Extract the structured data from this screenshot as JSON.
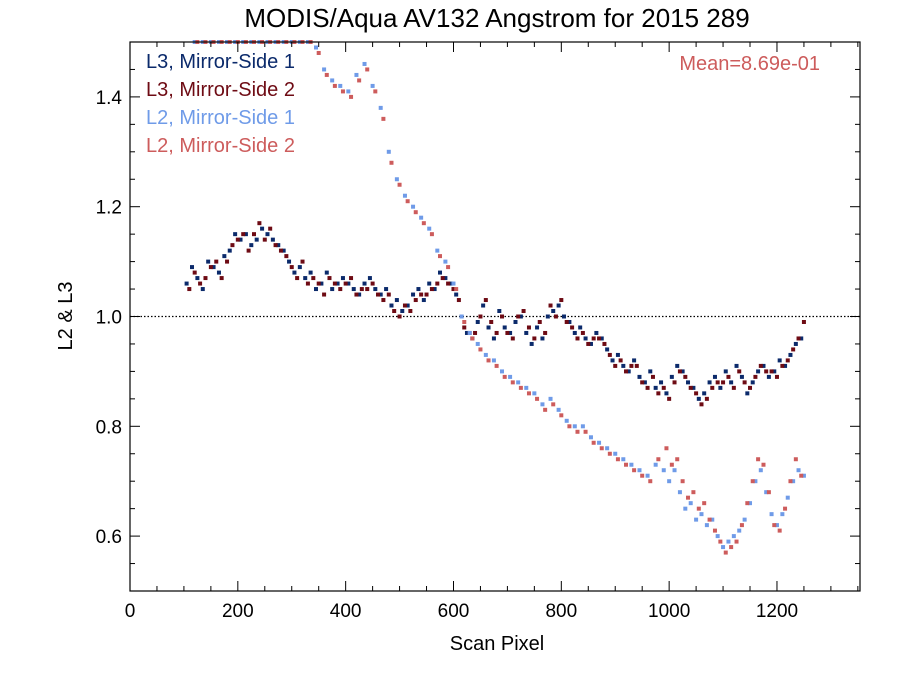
{
  "chart_data": {
    "type": "scatter",
    "title": "MODIS/Aqua AV132 Angstrom for 2015 289",
    "xlabel": "Scan Pixel",
    "ylabel": "L2 & L3",
    "xlim": [
      0,
      1354
    ],
    "ylim": [
      0.5,
      1.5
    ],
    "x_ticks": [
      0,
      200,
      400,
      600,
      800,
      1000,
      1200
    ],
    "y_ticks": [
      0.6,
      0.8,
      1.0,
      1.2,
      1.4
    ],
    "y_tick_labels": [
      "0.6",
      "0.8",
      "1.0",
      "1.2",
      "1.4"
    ],
    "reference_line": 1.0,
    "annotation": "Mean=8.69e-01",
    "annotation_color": "#cd5c5c",
    "legend_placement": "top-left",
    "series": [
      {
        "name": "L3, Mirror-Side 1",
        "color": "#0b2a6b",
        "x": [
          105,
          115,
          125,
          135,
          145,
          155,
          165,
          175,
          185,
          195,
          205,
          215,
          225,
          235,
          245,
          255,
          265,
          275,
          285,
          295,
          305,
          315,
          325,
          335,
          345,
          355,
          365,
          375,
          385,
          395,
          405,
          415,
          425,
          435,
          445,
          455,
          465,
          475,
          485,
          495,
          505,
          515,
          525,
          535,
          545,
          555,
          565,
          575,
          585,
          595,
          605,
          615,
          625,
          635,
          645,
          655,
          665,
          675,
          685,
          695,
          705,
          715,
          725,
          735,
          745,
          755,
          765,
          775,
          785,
          795,
          805,
          815,
          825,
          835,
          845,
          855,
          865,
          875,
          885,
          895,
          905,
          915,
          925,
          935,
          945,
          955,
          965,
          975,
          985,
          995,
          1005,
          1015,
          1025,
          1035,
          1045,
          1055,
          1065,
          1075,
          1085,
          1095,
          1105,
          1115,
          1125,
          1135,
          1145,
          1155,
          1165,
          1175,
          1185,
          1195,
          1205,
          1215,
          1225,
          1235,
          1245
        ],
        "y": [
          1.06,
          1.09,
          1.07,
          1.05,
          1.1,
          1.09,
          1.08,
          1.11,
          1.12,
          1.15,
          1.14,
          1.15,
          1.13,
          1.14,
          1.16,
          1.15,
          1.14,
          1.13,
          1.12,
          1.1,
          1.08,
          1.09,
          1.07,
          1.08,
          1.05,
          1.06,
          1.08,
          1.05,
          1.06,
          1.07,
          1.06,
          1.05,
          1.04,
          1.06,
          1.07,
          1.05,
          1.04,
          1.05,
          1.02,
          1.03,
          1.01,
          1.02,
          1.04,
          1.05,
          1.03,
          1.06,
          1.05,
          1.08,
          1.07,
          1.06,
          1.04,
          1.0,
          0.97,
          0.96,
          0.99,
          1.02,
          0.98,
          0.96,
          1.01,
          0.98,
          0.97,
          0.99,
          1.0,
          0.97,
          0.95,
          0.98,
          0.96,
          1.0,
          1.01,
          1.02,
          1.0,
          0.99,
          0.97,
          0.98,
          0.96,
          0.95,
          0.97,
          0.96,
          0.94,
          0.92,
          0.93,
          0.91,
          0.9,
          0.92,
          0.89,
          0.88,
          0.9,
          0.87,
          0.88,
          0.86,
          0.89,
          0.91,
          0.9,
          0.88,
          0.87,
          0.85,
          0.86,
          0.88,
          0.89,
          0.87,
          0.9,
          0.88,
          0.91,
          0.89,
          0.86,
          0.88,
          0.9,
          0.91,
          0.89,
          0.9,
          0.92,
          0.91,
          0.93,
          0.95,
          0.96
        ]
      },
      {
        "name": "L3, Mirror-Side 2",
        "color": "#6e0b14",
        "x": [
          110,
          120,
          130,
          140,
          150,
          160,
          170,
          180,
          190,
          200,
          210,
          220,
          230,
          240,
          250,
          260,
          270,
          280,
          290,
          300,
          310,
          320,
          330,
          340,
          350,
          360,
          370,
          380,
          390,
          400,
          410,
          420,
          430,
          440,
          450,
          460,
          470,
          480,
          490,
          500,
          510,
          520,
          530,
          540,
          550,
          560,
          570,
          580,
          590,
          600,
          610,
          620,
          630,
          640,
          650,
          660,
          670,
          680,
          690,
          700,
          710,
          720,
          730,
          740,
          750,
          760,
          770,
          780,
          790,
          800,
          810,
          820,
          830,
          840,
          850,
          860,
          870,
          880,
          890,
          900,
          910,
          920,
          930,
          940,
          950,
          960,
          970,
          980,
          990,
          1000,
          1010,
          1020,
          1030,
          1040,
          1050,
          1060,
          1070,
          1080,
          1090,
          1100,
          1110,
          1120,
          1130,
          1140,
          1150,
          1160,
          1170,
          1180,
          1190,
          1200,
          1210,
          1220,
          1230,
          1240,
          1250
        ],
        "y": [
          1.05,
          1.08,
          1.06,
          1.07,
          1.09,
          1.1,
          1.07,
          1.1,
          1.13,
          1.14,
          1.15,
          1.12,
          1.15,
          1.17,
          1.14,
          1.16,
          1.13,
          1.12,
          1.11,
          1.09,
          1.07,
          1.1,
          1.06,
          1.07,
          1.06,
          1.04,
          1.07,
          1.06,
          1.05,
          1.06,
          1.07,
          1.04,
          1.05,
          1.05,
          1.06,
          1.04,
          1.03,
          1.04,
          1.01,
          1.0,
          1.02,
          1.01,
          1.03,
          1.04,
          1.04,
          1.05,
          1.06,
          1.07,
          1.06,
          1.05,
          1.03,
          0.98,
          0.97,
          0.97,
          1.0,
          1.03,
          0.99,
          0.97,
          1.0,
          0.97,
          0.96,
          1.0,
          1.01,
          0.98,
          0.96,
          0.99,
          0.97,
          1.02,
          1.0,
          1.03,
          0.99,
          0.98,
          0.96,
          0.97,
          0.95,
          0.96,
          0.96,
          0.95,
          0.93,
          0.91,
          0.92,
          0.9,
          0.91,
          0.91,
          0.88,
          0.87,
          0.89,
          0.86,
          0.87,
          0.85,
          0.88,
          0.9,
          0.89,
          0.87,
          0.86,
          0.84,
          0.85,
          0.87,
          0.88,
          0.88,
          0.89,
          0.87,
          0.9,
          0.88,
          0.87,
          0.89,
          0.91,
          0.9,
          0.9,
          0.89,
          0.91,
          0.92,
          0.94,
          0.96,
          0.99
        ]
      },
      {
        "name": "L2, Mirror-Side 1",
        "color": "#6f9be8",
        "x": [
          120,
          135,
          150,
          165,
          180,
          195,
          210,
          225,
          240,
          255,
          270,
          285,
          300,
          315,
          330,
          345,
          360,
          375,
          390,
          405,
          420,
          435,
          450,
          465,
          480,
          495,
          510,
          525,
          540,
          555,
          570,
          585,
          600,
          615,
          630,
          645,
          660,
          675,
          690,
          705,
          720,
          735,
          750,
          765,
          780,
          795,
          810,
          825,
          840,
          855,
          870,
          885,
          900,
          915,
          930,
          945,
          960,
          975,
          990,
          1000,
          1010,
          1020,
          1030,
          1040,
          1050,
          1060,
          1070,
          1080,
          1090,
          1100,
          1110,
          1120,
          1130,
          1140,
          1150,
          1160,
          1170,
          1180,
          1190,
          1200,
          1210,
          1220,
          1230,
          1240,
          1250
        ],
        "y": [
          1.5,
          1.5,
          1.5,
          1.5,
          1.5,
          1.5,
          1.5,
          1.5,
          1.5,
          1.5,
          1.5,
          1.5,
          1.5,
          1.5,
          1.5,
          1.49,
          1.45,
          1.43,
          1.42,
          1.41,
          1.44,
          1.46,
          1.42,
          1.38,
          1.3,
          1.25,
          1.22,
          1.2,
          1.18,
          1.16,
          1.12,
          1.1,
          1.06,
          1.0,
          0.97,
          0.95,
          0.93,
          0.92,
          0.9,
          0.89,
          0.88,
          0.87,
          0.86,
          0.84,
          0.85,
          0.83,
          0.81,
          0.8,
          0.8,
          0.78,
          0.77,
          0.76,
          0.75,
          0.74,
          0.73,
          0.72,
          0.71,
          0.73,
          0.72,
          0.7,
          0.72,
          0.68,
          0.65,
          0.66,
          0.63,
          0.64,
          0.62,
          0.63,
          0.6,
          0.58,
          0.59,
          0.6,
          0.61,
          0.63,
          0.66,
          0.7,
          0.72,
          0.68,
          0.64,
          0.62,
          0.64,
          0.67,
          0.7,
          0.72,
          0.71
        ]
      },
      {
        "name": "L2, Mirror-Side 2",
        "color": "#cd5c5c",
        "x": [
          125,
          140,
          155,
          170,
          185,
          200,
          215,
          230,
          245,
          260,
          275,
          290,
          305,
          320,
          335,
          350,
          365,
          380,
          395,
          410,
          425,
          440,
          455,
          470,
          485,
          500,
          515,
          530,
          545,
          560,
          575,
          590,
          605,
          620,
          635,
          650,
          665,
          680,
          695,
          710,
          725,
          740,
          755,
          770,
          785,
          800,
          815,
          830,
          845,
          860,
          875,
          890,
          905,
          920,
          935,
          950,
          965,
          980,
          995,
          1005,
          1015,
          1025,
          1035,
          1045,
          1055,
          1065,
          1075,
          1085,
          1095,
          1105,
          1115,
          1125,
          1135,
          1145,
          1155,
          1165,
          1175,
          1185,
          1195,
          1205,
          1215,
          1225,
          1235,
          1245
        ],
        "y": [
          1.5,
          1.5,
          1.5,
          1.5,
          1.5,
          1.5,
          1.5,
          1.5,
          1.5,
          1.5,
          1.5,
          1.5,
          1.5,
          1.5,
          1.5,
          1.48,
          1.44,
          1.42,
          1.41,
          1.4,
          1.43,
          1.45,
          1.41,
          1.36,
          1.28,
          1.24,
          1.21,
          1.19,
          1.17,
          1.15,
          1.11,
          1.09,
          1.05,
          0.99,
          0.96,
          0.94,
          0.92,
          0.91,
          0.89,
          0.88,
          0.87,
          0.86,
          0.85,
          0.83,
          0.84,
          0.82,
          0.8,
          0.79,
          0.79,
          0.77,
          0.76,
          0.75,
          0.74,
          0.73,
          0.72,
          0.71,
          0.7,
          0.74,
          0.76,
          0.73,
          0.74,
          0.7,
          0.67,
          0.68,
          0.65,
          0.66,
          0.63,
          0.61,
          0.59,
          0.57,
          0.58,
          0.59,
          0.62,
          0.66,
          0.7,
          0.74,
          0.73,
          0.68,
          0.62,
          0.61,
          0.65,
          0.7,
          0.74,
          0.71
        ]
      }
    ]
  }
}
